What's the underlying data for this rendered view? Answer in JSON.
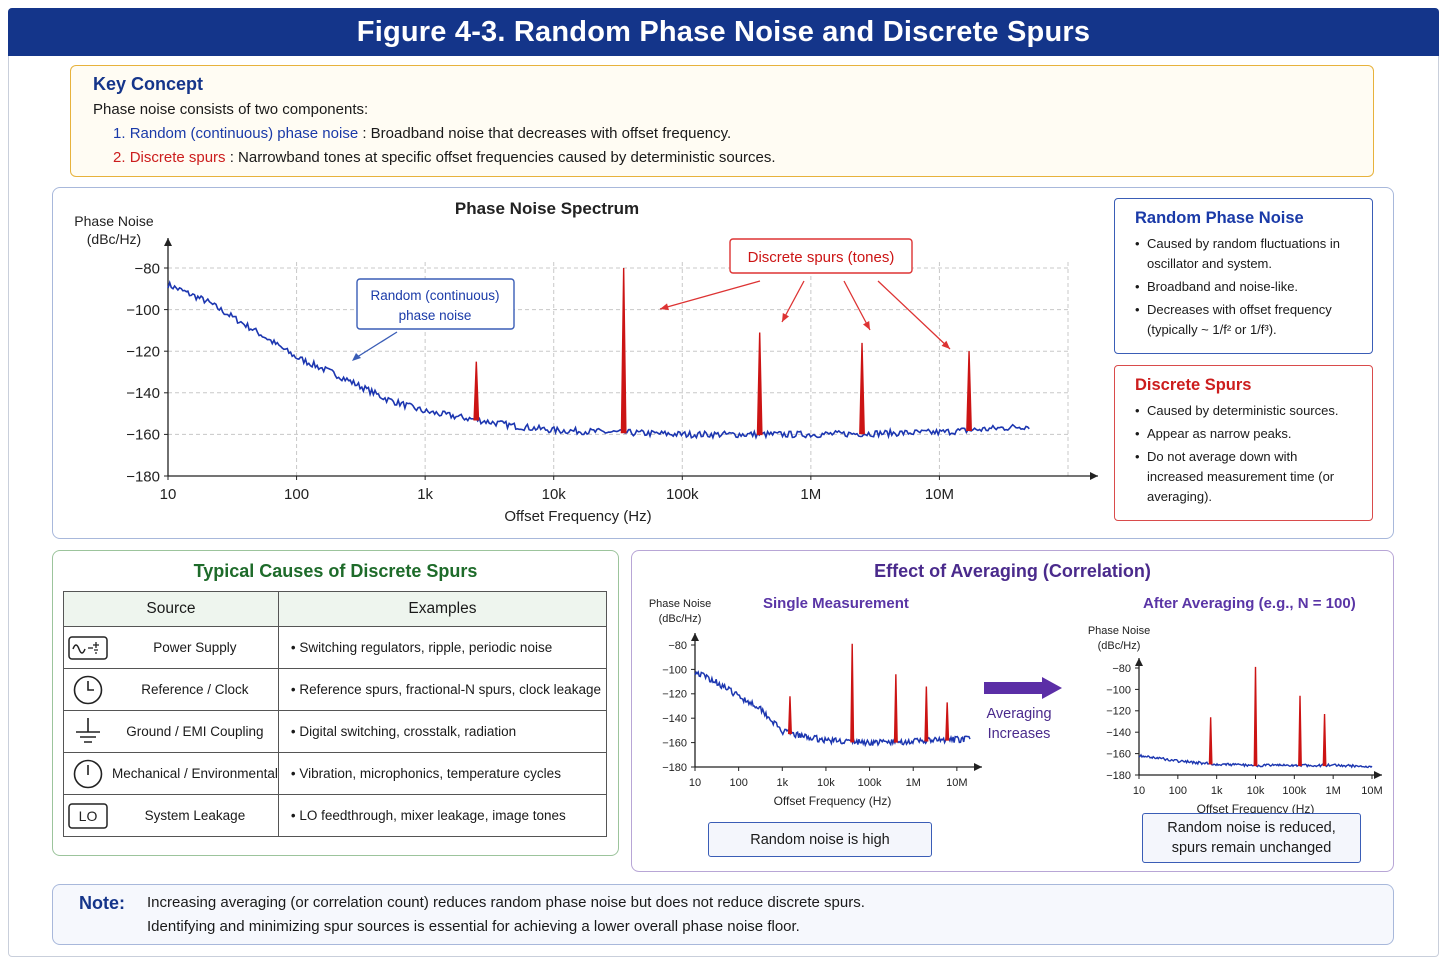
{
  "title": "Figure 4-3. Random Phase Noise and Discrete Spurs",
  "key": {
    "title": "Key Concept",
    "intro": "Phase noise consists of two components:",
    "items": [
      {
        "num": "1.",
        "term": "Random (continuous) phase noise",
        "desc": ": Broadband noise that decreases with offset frequency."
      },
      {
        "num": "2.",
        "term": "Discrete spurs",
        "desc": ": Narrowband tones at specific offset frequencies caused by deterministic sources."
      }
    ]
  },
  "colors": {
    "noise": "#1c36b0",
    "spur": "#cc1414",
    "banner": "#14358a"
  },
  "chart_data": [
    {
      "type": "line",
      "title": "Phase Noise Spectrum",
      "ylabel": [
        "Phase Noise",
        "(dBc/Hz)"
      ],
      "xlabel": "Offset Frequency (Hz)",
      "x_scale": "log",
      "xlim": [
        10,
        100000000
      ],
      "ylim": [
        -180,
        -80
      ],
      "x_ticks": [
        10,
        100,
        1000,
        10000,
        100000,
        1000000,
        10000000
      ],
      "x_tick_labels": [
        "10",
        "100",
        "1k",
        "10k",
        "100k",
        "1M",
        "10M"
      ],
      "y_ticks": [
        -80,
        -100,
        -120,
        -140,
        -160,
        -180
      ],
      "y_tick_labels": [
        "−80",
        "−100",
        "−120",
        "−140",
        "−160",
        "−180"
      ],
      "grid": true,
      "noise_curve": {
        "x": [
          10,
          20,
          50,
          100,
          200,
          500,
          1000,
          2000,
          5000,
          10000,
          30000,
          100000,
          1000000,
          10000000,
          50000000
        ],
        "y": [
          -88,
          -96,
          -111,
          -123,
          -131,
          -143,
          -149,
          -152,
          -156,
          -158,
          -159,
          -160,
          -160,
          -159,
          -156
        ]
      },
      "spurs": {
        "x": [
          2500,
          35000,
          400000,
          2500000,
          17000000
        ],
        "y": [
          -125,
          -80,
          -111,
          -116,
          -120
        ]
      },
      "annotations": {
        "noise_label": [
          "Random (continuous)",
          "phase noise"
        ],
        "spur_label": "Discrete spurs (tones)"
      }
    },
    {
      "type": "line",
      "title": "Single Measurement",
      "ylabel": [
        "Phase Noise",
        "(dBc/Hz)"
      ],
      "xlabel": "Offset Frequency (Hz)",
      "x_scale": "log",
      "xlim": [
        10,
        20000000
      ],
      "ylim": [
        -180,
        -80
      ],
      "x_ticks": [
        10,
        100,
        1000,
        10000,
        100000,
        1000000,
        10000000
      ],
      "x_tick_labels": [
        "10",
        "100",
        "1k",
        "10k",
        "100k",
        "1M",
        "10M"
      ],
      "y_ticks": [
        -80,
        -100,
        -120,
        -140,
        -160,
        -180
      ],
      "y_tick_labels": [
        "−80",
        "−100",
        "−120",
        "−140",
        "−160",
        "−180"
      ],
      "noise_curve": {
        "x": [
          10,
          30,
          100,
          300,
          1000,
          3000,
          10000,
          100000,
          1000000,
          20000000
        ],
        "y": [
          -102,
          -110,
          -122,
          -131,
          -151,
          -155,
          -158,
          -160,
          -159,
          -157
        ]
      },
      "spurs": {
        "x": [
          1500,
          40000,
          400000,
          2000000,
          6000000
        ],
        "y": [
          -122,
          -79,
          -104,
          -114,
          -127
        ]
      }
    },
    {
      "type": "line",
      "title": "After Averaging (e.g., N = 100)",
      "ylabel": [
        "Phase Noise",
        "(dBc/Hz)"
      ],
      "xlabel": "Offset Frequency (Hz)",
      "x_scale": "log",
      "xlim": [
        10,
        10000000
      ],
      "ylim": [
        -180,
        -80
      ],
      "x_ticks": [
        10,
        100,
        1000,
        10000,
        100000,
        1000000,
        10000000
      ],
      "x_tick_labels": [
        "10",
        "100",
        "1k",
        "10k",
        "100k",
        "1M",
        "10M"
      ],
      "y_ticks": [
        -80,
        -100,
        -120,
        -140,
        -160,
        -180
      ],
      "y_tick_labels": [
        "−80",
        "−100",
        "−120",
        "−140",
        "−160",
        "−180"
      ],
      "noise_curve": {
        "x": [
          10,
          30,
          100,
          1000,
          10000,
          100000,
          1000000,
          10000000
        ],
        "y": [
          -162,
          -164,
          -167,
          -170,
          -171,
          -171,
          -171,
          -172
        ]
      },
      "spurs": {
        "x": [
          700,
          10000,
          140000,
          600000
        ],
        "y": [
          -126,
          -79,
          -106,
          -123
        ]
      }
    }
  ],
  "side": {
    "random": {
      "title": "Random Phase Noise",
      "items": [
        "Caused by random fluctuations in oscillator and system.",
        "Broadband and noise-like.",
        "Decreases with offset frequency (typically ~ 1/f² or 1/f³)."
      ]
    },
    "spurs": {
      "title": "Discrete Spurs",
      "items": [
        "Caused by deterministic sources.",
        "Appear as narrow peaks.",
        "Do not average down with increased measurement time (or averaging)."
      ]
    }
  },
  "causes": {
    "title": "Typical Causes of Discrete Spurs",
    "headers": [
      "Source",
      "Examples"
    ],
    "rows": [
      {
        "icon": "power-supply-icon",
        "source": "Power Supply",
        "example": "Switching regulators, ripple, periodic noise"
      },
      {
        "icon": "clock-icon",
        "source": "Reference / Clock",
        "example": "Reference spurs, fractional-N spurs, clock leakage"
      },
      {
        "icon": "ground-icon",
        "source": "Ground / EMI Coupling",
        "example": "Digital switching, crosstalk, radiation"
      },
      {
        "icon": "clock-icon",
        "source": "Mechanical / Environmental",
        "example": "Vibration, microphonics, temperature cycles"
      },
      {
        "icon": "lo-icon",
        "source": "System Leakage",
        "example": "LO feedthrough, mixer leakage, image tones",
        "icon_text": "LO"
      }
    ]
  },
  "averaging": {
    "title": "Effect of Averaging (Correlation)",
    "arrow_label": [
      "Averaging",
      "Increases"
    ],
    "single_result": "Random noise is high",
    "after_result": [
      "Random noise is reduced,",
      "spurs remain unchanged"
    ]
  },
  "note": {
    "label": "Note:",
    "lines": [
      "Increasing averaging (or correlation count) reduces random phase noise but does not reduce discrete spurs.",
      "Identifying and minimizing spur sources is essential for achieving a lower overall phase noise floor."
    ]
  }
}
